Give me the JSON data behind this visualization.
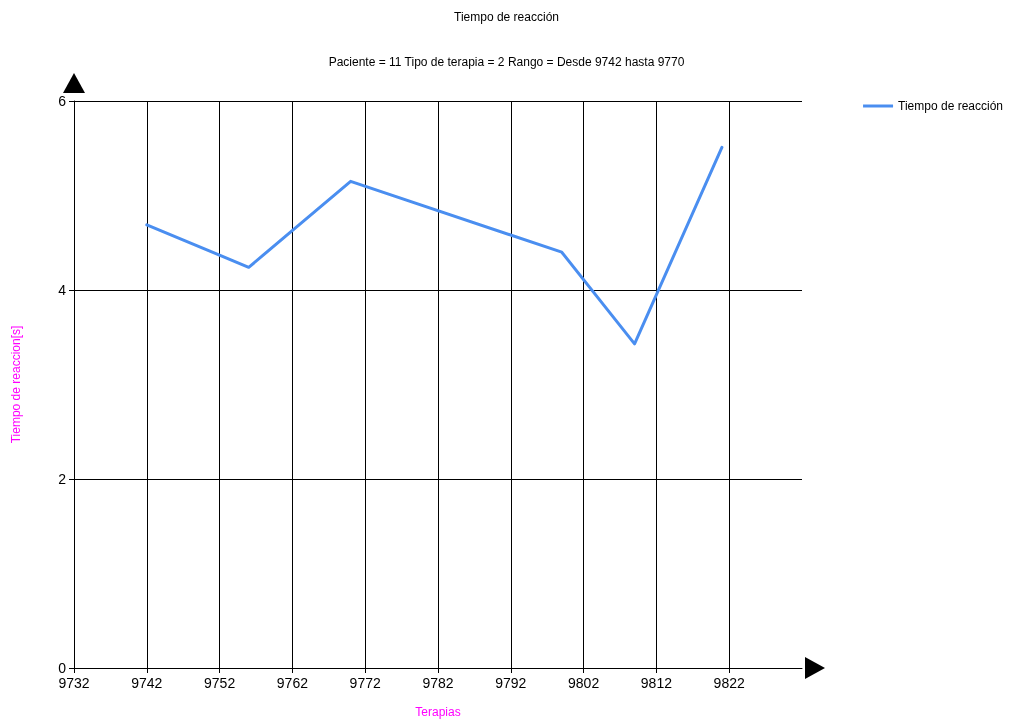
{
  "chart_data": {
    "type": "line",
    "title": "Tiempo de reacción",
    "subtitle": "Paciente = 11 Tipo de terapia = 2 Rango = Desde 9742 hasta 9770",
    "xlabel": "Terapias",
    "ylabel": "Tiempo de reaccion[s]",
    "x": [
      9742,
      9756,
      9770,
      9799,
      9809,
      9821
    ],
    "series": [
      {
        "name": "Tiempo de reacción",
        "color": "#4a8ef0",
        "values": [
          4.69,
          4.24,
          5.15,
          4.4,
          3.43,
          5.51
        ]
      }
    ],
    "xlim": [
      9732,
      9832
    ],
    "xticks": [
      9732,
      9742,
      9752,
      9762,
      9772,
      9782,
      9792,
      9802,
      9812,
      9822
    ],
    "ylim": [
      0,
      6
    ],
    "yticks": [
      0,
      2,
      4,
      6
    ],
    "grid": true,
    "legend": "top right",
    "marker": "none",
    "line_style": "solid"
  }
}
